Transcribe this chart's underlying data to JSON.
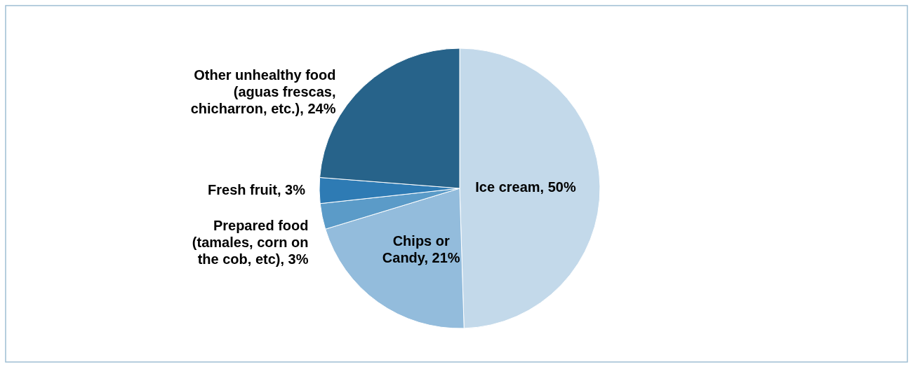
{
  "chart_data": {
    "type": "pie",
    "categories": [
      "Ice cream",
      "Chips or Candy",
      "Prepared food (tamales, corn on the cob, etc)",
      "Fresh fruit",
      "Other unhealthy food (aguas frescas, chicharron, etc.)"
    ],
    "values": [
      50,
      21,
      3,
      3,
      24
    ],
    "value_labels": [
      "50%",
      "21%",
      "3%",
      "3%",
      "24%"
    ],
    "colors": [
      "#c3d9ea",
      "#93bcdc",
      "#5b9bc8",
      "#2e7bb4",
      "#27638a"
    ]
  }
}
